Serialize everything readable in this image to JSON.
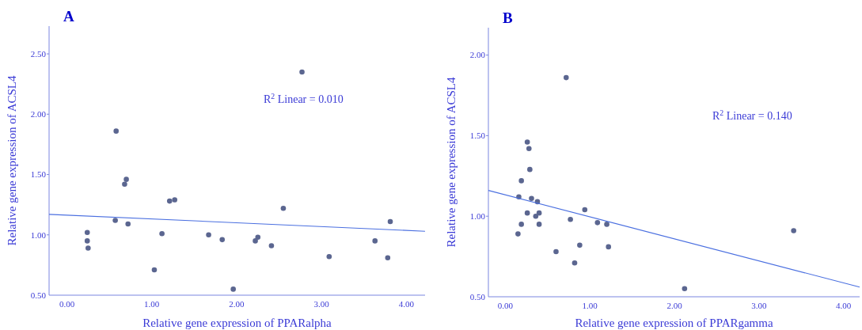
{
  "chart_data": [
    {
      "type": "scatter",
      "title": "A",
      "xlabel": "Relative gene expression of PPARalpha",
      "ylabel": "Relative gene expression of ACSL4",
      "xlim": [
        -0.21,
        4.22
      ],
      "ylim": [
        0.5,
        2.73
      ],
      "xticks": [
        {
          "value": 0,
          "label": "0.00"
        },
        {
          "value": 1,
          "label": "1.00"
        },
        {
          "value": 2,
          "label": "2.00"
        },
        {
          "value": 3,
          "label": "3.00"
        },
        {
          "value": 4,
          "label": "4.00"
        }
      ],
      "yticks": [
        {
          "value": 0.5,
          "label": "0.50"
        },
        {
          "value": 1,
          "label": "1.00"
        },
        {
          "value": 1.5,
          "label": "1.50"
        },
        {
          "value": 2,
          "label": "2.00"
        },
        {
          "value": 2.5,
          "label": "2.50"
        }
      ],
      "annotations": [
        "R$^{2}$ Linear = 0.010"
      ],
      "series": [
        {
          "type": "scatter",
          "marker": "circle",
          "color": "#5b6690",
          "x": [
            0.24,
            0.24,
            0.25,
            0.58,
            0.57,
            0.68,
            0.7,
            0.72,
            1.03,
            1.12,
            1.21,
            1.27,
            1.67,
            1.83,
            1.96,
            2.22,
            2.25,
            2.41,
            2.55,
            2.77,
            3.09,
            3.63,
            3.78,
            3.81
          ],
          "values": [
            1.02,
            0.95,
            0.89,
            1.86,
            1.12,
            1.42,
            1.46,
            1.09,
            0.71,
            1.01,
            1.28,
            1.29,
            1.0,
            0.96,
            0.55,
            0.95,
            0.98,
            0.91,
            1.22,
            2.35,
            0.82,
            0.95,
            0.81,
            1.11
          ]
        },
        {
          "type": "line",
          "marker": "none",
          "color": "#4a6fe0",
          "x": [
            -0.21,
            4.22
          ],
          "values": [
            1.17,
            1.03
          ]
        }
      ]
    },
    {
      "type": "scatter",
      "title": "B",
      "xlabel": "Relative gene expression of PPARgamma",
      "ylabel": "Relative gene expression of ACSL4",
      "xlim": [
        -0.2,
        4.19
      ],
      "ylim": [
        0.5,
        2.17
      ],
      "xticks": [
        {
          "value": 0,
          "label": "0.00"
        },
        {
          "value": 1,
          "label": "1.00"
        },
        {
          "value": 2,
          "label": "2.00"
        },
        {
          "value": 3,
          "label": "3.00"
        },
        {
          "value": 4,
          "label": "4.00"
        }
      ],
      "yticks": [
        {
          "value": 0.5,
          "label": "0.50"
        },
        {
          "value": 1,
          "label": "1.00"
        },
        {
          "value": 1.5,
          "label": "1.50"
        },
        {
          "value": 2,
          "label": "2.00"
        }
      ],
      "annotations": [
        "R$^{2}$ Linear = 0.140"
      ],
      "series": [
        {
          "type": "scatter",
          "marker": "circle",
          "color": "#5b6690",
          "x": [
            0.72,
            0.26,
            0.28,
            0.29,
            0.19,
            0.16,
            0.31,
            0.38,
            0.26,
            0.4,
            0.36,
            0.94,
            0.77,
            1.09,
            1.2,
            0.19,
            0.4,
            0.15,
            0.6,
            0.88,
            1.22,
            0.82,
            2.12,
            3.41
          ],
          "values": [
            1.86,
            1.46,
            1.42,
            1.29,
            1.22,
            1.12,
            1.11,
            1.09,
            1.02,
            1.02,
            1.0,
            1.04,
            0.98,
            0.96,
            0.95,
            0.95,
            0.95,
            0.89,
            0.78,
            0.82,
            0.81,
            0.71,
            0.55,
            0.91
          ]
        },
        {
          "type": "line",
          "marker": "none",
          "color": "#4a6fe0",
          "x": [
            -0.2,
            4.19
          ],
          "values": [
            1.16,
            0.56
          ]
        }
      ]
    }
  ]
}
